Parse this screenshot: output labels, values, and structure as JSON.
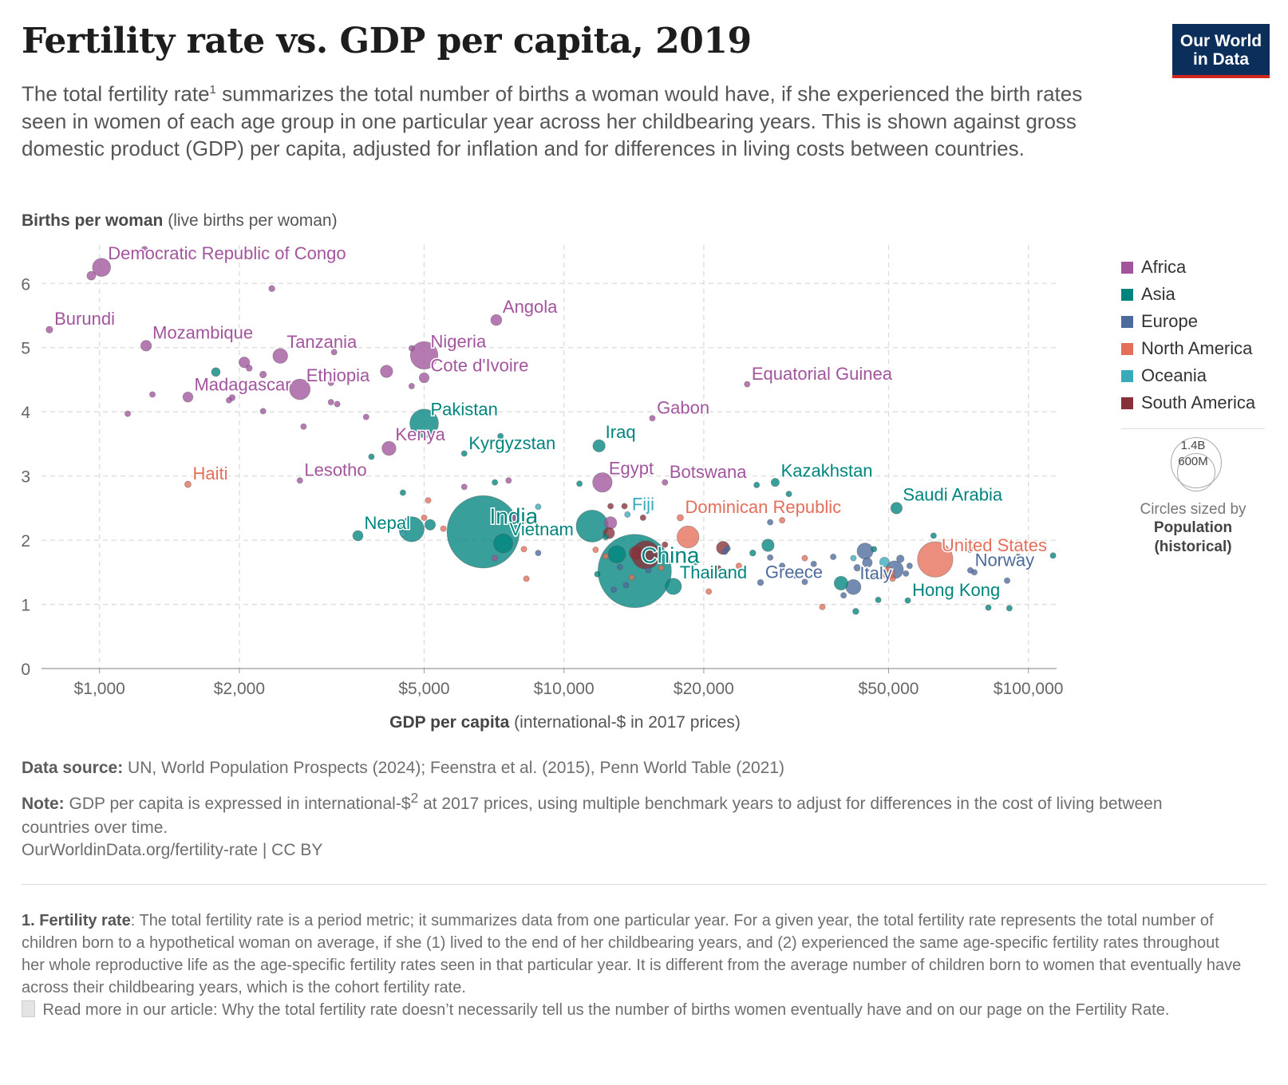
{
  "header": {
    "title": "Fertility rate vs. GDP per capita, 2019",
    "subtitle_part1": "The total fertility rate",
    "subtitle_sup": "1",
    "subtitle_part2": " summarizes the total number of births a woman would have, if she experienced the birth rates seen in women of each age group in one particular year across her childbearing years. This is shown against gross domestic product (GDP) per capita, adjusted for inflation and for differences in living costs between countries.",
    "logo_line1": "Our World",
    "logo_line2": "in Data"
  },
  "axis_text": {
    "ylabel_bold": "Births per woman",
    "ylabel_rest": " (live births per woman)",
    "xlabel_bold": "GDP per capita",
    "xlabel_rest": " (international-$ in 2017 prices)"
  },
  "legend": {
    "items": [
      {
        "label": "Africa",
        "color": "#a2559c"
      },
      {
        "label": "Asia",
        "color": "#00847e"
      },
      {
        "label": "Europe",
        "color": "#4c6a9c"
      },
      {
        "label": "North America",
        "color": "#e56e5a"
      },
      {
        "label": "Oceania",
        "color": "#38aaba"
      },
      {
        "label": "South America",
        "color": "#883039"
      }
    ],
    "size_value_1": "1.4B",
    "size_value_2": "600M",
    "size_caption_1": "Circles sized by",
    "size_caption_2": "Population",
    "size_caption_3": "(historical)"
  },
  "footer": {
    "source_label": "Data source:",
    "source_text": " UN, World Population Prospects (2024); Feenstra et al. (2015), Penn World Table (2021)",
    "note_label": "Note:",
    "note_text_1": " GDP per capita is expressed in international-$",
    "note_sup": "2",
    "note_text_2": " at 2017 prices, using multiple benchmark years to adjust for differences in the cost of living between countries over time.",
    "url": "OurWorldinData.org/fertility-rate | CC BY",
    "fn_label": "1. Fertility rate",
    "fn_text": ": The total fertility rate is a period metric; it summarizes data from one particular year. For a given year, the total fertility rate represents the total number of children born to a hypothetical woman on average, if she (1) lived to the end of her childbearing years, and (2) experienced the same age-specific fertility rates throughout her whole reproductive life as the age-specific fertility rates seen in that particular year. It is different from the average number of children born to women that eventually have across their childbearing years, which is the cohort fertility rate.",
    "fn_more": " Read more in our article: Why the total fertility rate doesn’t necessarily tell us the number of births women eventually have and on our page on the Fertility Rate."
  },
  "chart_data": {
    "type": "scatter",
    "x_scale": "log",
    "xlim": [
      750,
      115000
    ],
    "ylim": [
      0,
      6.6
    ],
    "y_ticks": [
      0,
      1,
      2,
      3,
      4,
      5,
      6
    ],
    "x_ticks": [
      {
        "value": 1000,
        "label": "$1,000"
      },
      {
        "value": 2000,
        "label": "$2,000"
      },
      {
        "value": 5000,
        "label": "$5,000"
      },
      {
        "value": 10000,
        "label": "$10,000"
      },
      {
        "value": 20000,
        "label": "$20,000"
      },
      {
        "value": 50000,
        "label": "$50,000"
      },
      {
        "value": 100000,
        "label": "$100,000"
      }
    ],
    "grid": true,
    "region_colors": {
      "Africa": "#a2559c",
      "Asia": "#00847e",
      "Europe": "#4c6a9c",
      "North America": "#e56e5a",
      "Oceania": "#38aaba",
      "South America": "#883039"
    },
    "labeled_points": [
      {
        "name": "Democratic Republic of Congo",
        "region": "Africa",
        "x": 1010,
        "y": 6.25,
        "pop": 87
      },
      {
        "name": "Burundi",
        "region": "Africa",
        "x": 780,
        "y": 5.28,
        "pop": 12
      },
      {
        "name": "Mozambique",
        "region": "Africa",
        "x": 1260,
        "y": 5.03,
        "pop": 30
      },
      {
        "name": "Tanzania",
        "region": "Africa",
        "x": 2450,
        "y": 4.87,
        "pop": 58
      },
      {
        "name": "Madagascar",
        "region": "Africa",
        "x": 1550,
        "y": 4.23,
        "pop": 27
      },
      {
        "name": "Ethiopia",
        "region": "Africa",
        "x": 2700,
        "y": 4.35,
        "pop": 112
      },
      {
        "name": "Nigeria",
        "region": "Africa",
        "x": 5000,
        "y": 4.88,
        "pop": 200
      },
      {
        "name": "Cote d'Ivoire",
        "region": "Africa",
        "x": 5000,
        "y": 4.53,
        "pop": 26
      },
      {
        "name": "Angola",
        "region": "Africa",
        "x": 7150,
        "y": 5.43,
        "pop": 32
      },
      {
        "name": "Kenya",
        "region": "Africa",
        "x": 4200,
        "y": 3.43,
        "pop": 52
      },
      {
        "name": "Lesotho",
        "region": "Africa",
        "x": 2700,
        "y": 2.93,
        "pop": 2
      },
      {
        "name": "Egypt",
        "region": "Africa",
        "x": 12100,
        "y": 2.9,
        "pop": 100
      },
      {
        "name": "Gabon",
        "region": "Africa",
        "x": 15500,
        "y": 3.9,
        "pop": 2
      },
      {
        "name": "Botswana",
        "region": "Africa",
        "x": 16500,
        "y": 2.9,
        "pop": 2
      },
      {
        "name": "Equatorial Guinea",
        "region": "Africa",
        "x": 24800,
        "y": 4.43,
        "pop": 1
      },
      {
        "name": "Haiti",
        "region": "North America",
        "x": 1550,
        "y": 2.87,
        "pop": 11
      },
      {
        "name": "Pakistan",
        "region": "Asia",
        "x": 5000,
        "y": 3.82,
        "pop": 216
      },
      {
        "name": "Kyrgyzstan",
        "region": "Asia",
        "x": 6100,
        "y": 3.35,
        "pop": 6
      },
      {
        "name": "Iraq",
        "region": "Asia",
        "x": 11900,
        "y": 3.47,
        "pop": 40
      },
      {
        "name": "Nepal",
        "region": "Asia",
        "x": 3600,
        "y": 2.07,
        "pop": 28
      },
      {
        "name": "India",
        "region": "Asia",
        "x": 6700,
        "y": 2.13,
        "pop": 1380
      },
      {
        "name": "Vietnam",
        "region": "Asia",
        "x": 7400,
        "y": 1.95,
        "pop": 96
      },
      {
        "name": "Fiji",
        "region": "Oceania",
        "x": 13700,
        "y": 2.4,
        "pop": 1
      },
      {
        "name": "Dominican Republic",
        "region": "North America",
        "x": 17800,
        "y": 2.35,
        "pop": 11
      },
      {
        "name": "China",
        "region": "Asia",
        "x": 14200,
        "y": 1.52,
        "pop": 1420
      },
      {
        "name": "Thailand",
        "region": "Asia",
        "x": 17200,
        "y": 1.28,
        "pop": 70
      },
      {
        "name": "Kazakhstan",
        "region": "Asia",
        "x": 28500,
        "y": 2.9,
        "pop": 18
      },
      {
        "name": "Greece",
        "region": "Europe",
        "x": 26500,
        "y": 1.34,
        "pop": 10
      },
      {
        "name": "Saudi Arabia",
        "region": "Asia",
        "x": 52000,
        "y": 2.5,
        "pop": 35
      },
      {
        "name": "United States",
        "region": "North America",
        "x": 63000,
        "y": 1.7,
        "pop": 330
      },
      {
        "name": "Italy",
        "region": "Europe",
        "x": 42000,
        "y": 1.27,
        "pop": 60
      },
      {
        "name": "Norway",
        "region": "Europe",
        "x": 75000,
        "y": 1.53,
        "pop": 5
      },
      {
        "name": "Hong Kong",
        "region": "Asia",
        "x": 55000,
        "y": 1.06,
        "pop": 7
      }
    ],
    "other_points": [
      {
        "region": "Africa",
        "x": 1250,
        "y": 6.53,
        "pop": 10
      },
      {
        "region": "Africa",
        "x": 960,
        "y": 6.12,
        "pop": 20
      },
      {
        "region": "Africa",
        "x": 2350,
        "y": 5.92,
        "pop": 10
      },
      {
        "region": "Africa",
        "x": 3200,
        "y": 4.93,
        "pop": 4
      },
      {
        "region": "Africa",
        "x": 4700,
        "y": 4.99,
        "pop": 5
      },
      {
        "region": "Africa",
        "x": 2050,
        "y": 4.77,
        "pop": 30
      },
      {
        "region": "Africa",
        "x": 2100,
        "y": 4.68,
        "pop": 10
      },
      {
        "region": "Africa",
        "x": 2250,
        "y": 4.58,
        "pop": 12
      },
      {
        "region": "Africa",
        "x": 4150,
        "y": 4.63,
        "pop": 40
      },
      {
        "region": "Africa",
        "x": 3150,
        "y": 4.45,
        "pop": 6
      },
      {
        "region": "Africa",
        "x": 4700,
        "y": 4.4,
        "pop": 5
      },
      {
        "region": "Africa",
        "x": 1300,
        "y": 4.27,
        "pop": 8
      },
      {
        "region": "Africa",
        "x": 1900,
        "y": 4.18,
        "pop": 8
      },
      {
        "region": "Africa",
        "x": 1930,
        "y": 4.22,
        "pop": 10
      },
      {
        "region": "Africa",
        "x": 3150,
        "y": 4.15,
        "pop": 8
      },
      {
        "region": "Africa",
        "x": 3250,
        "y": 4.12,
        "pop": 4
      },
      {
        "region": "Africa",
        "x": 1150,
        "y": 3.97,
        "pop": 8
      },
      {
        "region": "Africa",
        "x": 2250,
        "y": 4.01,
        "pop": 8
      },
      {
        "region": "Africa",
        "x": 3750,
        "y": 3.92,
        "pop": 6
      },
      {
        "region": "Africa",
        "x": 2750,
        "y": 3.77,
        "pop": 6
      },
      {
        "region": "Africa",
        "x": 7600,
        "y": 2.93,
        "pop": 8
      },
      {
        "region": "Africa",
        "x": 6100,
        "y": 2.83,
        "pop": 6
      },
      {
        "region": "Africa",
        "x": 7800,
        "y": 2.36,
        "pop": 35
      },
      {
        "region": "Africa",
        "x": 12600,
        "y": 2.27,
        "pop": 40
      },
      {
        "region": "Africa",
        "x": 7100,
        "y": 1.72,
        "pop": 3
      },
      {
        "region": "Asia",
        "x": 1780,
        "y": 4.62,
        "pop": 20
      },
      {
        "region": "Asia",
        "x": 3850,
        "y": 3.3,
        "pop": 6
      },
      {
        "region": "Asia",
        "x": 7300,
        "y": 3.62,
        "pop": 4
      },
      {
        "region": "Asia",
        "x": 7100,
        "y": 2.9,
        "pop": 6
      },
      {
        "region": "Asia",
        "x": 4500,
        "y": 2.74,
        "pop": 4
      },
      {
        "region": "Asia",
        "x": 10800,
        "y": 2.88,
        "pop": 5
      },
      {
        "region": "Asia",
        "x": 30500,
        "y": 2.72,
        "pop": 5
      },
      {
        "region": "Asia",
        "x": 26000,
        "y": 2.86,
        "pop": 6
      },
      {
        "region": "Asia",
        "x": 4700,
        "y": 2.17,
        "pop": 165
      },
      {
        "region": "Asia",
        "x": 5150,
        "y": 2.24,
        "pop": 30
      },
      {
        "region": "Asia",
        "x": 11500,
        "y": 2.22,
        "pop": 270
      },
      {
        "region": "Asia",
        "x": 8200,
        "y": 2.3,
        "pop": 6
      },
      {
        "region": "Asia",
        "x": 13000,
        "y": 1.78,
        "pop": 80
      },
      {
        "region": "Asia",
        "x": 12300,
        "y": 2.05,
        "pop": 8
      },
      {
        "region": "Asia",
        "x": 27500,
        "y": 1.92,
        "pop": 40
      },
      {
        "region": "Asia",
        "x": 25500,
        "y": 1.8,
        "pop": 10
      },
      {
        "region": "Asia",
        "x": 39500,
        "y": 1.33,
        "pop": 50
      },
      {
        "region": "Asia",
        "x": 42500,
        "y": 0.89,
        "pop": 10
      },
      {
        "region": "Asia",
        "x": 47500,
        "y": 1.07,
        "pop": 5
      },
      {
        "region": "Asia",
        "x": 46500,
        "y": 1.86,
        "pop": 3
      },
      {
        "region": "Asia",
        "x": 62500,
        "y": 2.07,
        "pop": 4
      },
      {
        "region": "Asia",
        "x": 75000,
        "y": 1.85,
        "pop": 4
      },
      {
        "region": "Asia",
        "x": 82000,
        "y": 0.95,
        "pop": 4
      },
      {
        "region": "Asia",
        "x": 91000,
        "y": 0.94,
        "pop": 4
      },
      {
        "region": "Asia",
        "x": 113000,
        "y": 1.76,
        "pop": 4
      },
      {
        "region": "Asia",
        "x": 11800,
        "y": 1.47,
        "pop": 5
      },
      {
        "region": "Asia",
        "x": 19200,
        "y": 1.66,
        "pop": 4
      },
      {
        "region": "Europe",
        "x": 8800,
        "y": 1.8,
        "pop": 5
      },
      {
        "region": "Europe",
        "x": 13600,
        "y": 1.3,
        "pop": 4
      },
      {
        "region": "Europe",
        "x": 12800,
        "y": 1.23,
        "pop": 6
      },
      {
        "region": "Europe",
        "x": 13200,
        "y": 1.58,
        "pop": 4
      },
      {
        "region": "Europe",
        "x": 15200,
        "y": 1.53,
        "pop": 4
      },
      {
        "region": "Europe",
        "x": 22200,
        "y": 1.82,
        "pop": 6
      },
      {
        "region": "Europe",
        "x": 22500,
        "y": 1.87,
        "pop": 8
      },
      {
        "region": "Europe",
        "x": 27800,
        "y": 2.28,
        "pop": 4
      },
      {
        "region": "Europe",
        "x": 27800,
        "y": 1.73,
        "pop": 6
      },
      {
        "region": "Europe",
        "x": 29500,
        "y": 1.6,
        "pop": 6
      },
      {
        "region": "Europe",
        "x": 31500,
        "y": 1.45,
        "pop": 8
      },
      {
        "region": "Europe",
        "x": 33000,
        "y": 1.35,
        "pop": 5
      },
      {
        "region": "Europe",
        "x": 34500,
        "y": 1.63,
        "pop": 6
      },
      {
        "region": "Europe",
        "x": 38000,
        "y": 1.74,
        "pop": 6
      },
      {
        "region": "Europe",
        "x": 40000,
        "y": 1.14,
        "pop": 8
      },
      {
        "region": "Europe",
        "x": 42800,
        "y": 1.57,
        "pop": 12
      },
      {
        "region": "Europe",
        "x": 44500,
        "y": 1.83,
        "pop": 68
      },
      {
        "region": "Europe",
        "x": 45000,
        "y": 1.65,
        "pop": 25
      },
      {
        "region": "Europe",
        "x": 46500,
        "y": 1.44,
        "pop": 10
      },
      {
        "region": "Europe",
        "x": 51500,
        "y": 1.54,
        "pop": 83
      },
      {
        "region": "Europe",
        "x": 53000,
        "y": 1.71,
        "pop": 15
      },
      {
        "region": "Europe",
        "x": 55500,
        "y": 1.6,
        "pop": 8
      },
      {
        "region": "Europe",
        "x": 54500,
        "y": 1.48,
        "pop": 8
      },
      {
        "region": "Europe",
        "x": 76500,
        "y": 1.5,
        "pop": 8
      },
      {
        "region": "Europe",
        "x": 90000,
        "y": 1.37,
        "pop": 6
      },
      {
        "region": "Europe",
        "x": 95000,
        "y": 1.74,
        "pop": 4
      },
      {
        "region": "North America",
        "x": 5000,
        "y": 2.35,
        "pop": 5
      },
      {
        "region": "North America",
        "x": 5500,
        "y": 2.18,
        "pop": 5
      },
      {
        "region": "North America",
        "x": 5100,
        "y": 2.62,
        "pop": 3
      },
      {
        "region": "North America",
        "x": 8200,
        "y": 1.86,
        "pop": 4
      },
      {
        "region": "North America",
        "x": 8300,
        "y": 1.4,
        "pop": 4
      },
      {
        "region": "North America",
        "x": 11700,
        "y": 1.85,
        "pop": 4
      },
      {
        "region": "North America",
        "x": 12300,
        "y": 1.75,
        "pop": 4
      },
      {
        "region": "North America",
        "x": 16200,
        "y": 1.57,
        "pop": 4
      },
      {
        "region": "North America",
        "x": 18500,
        "y": 2.05,
        "pop": 127
      },
      {
        "region": "North America",
        "x": 20500,
        "y": 1.2,
        "pop": 4
      },
      {
        "region": "North America",
        "x": 23800,
        "y": 1.6,
        "pop": 4
      },
      {
        "region": "North America",
        "x": 29500,
        "y": 2.31,
        "pop": 3
      },
      {
        "region": "North America",
        "x": 33000,
        "y": 1.72,
        "pop": 5
      },
      {
        "region": "North America",
        "x": 50000,
        "y": 1.49,
        "pop": 38
      },
      {
        "region": "North America",
        "x": 51000,
        "y": 1.4,
        "pop": 4
      },
      {
        "region": "North America",
        "x": 36000,
        "y": 0.96,
        "pop": 4
      },
      {
        "region": "North America",
        "x": 14000,
        "y": 1.42,
        "pop": 5
      },
      {
        "region": "Oceania",
        "x": 4500,
        "y": 2.1,
        "pop": 4
      },
      {
        "region": "Oceania",
        "x": 8800,
        "y": 2.52,
        "pop": 4
      },
      {
        "region": "Oceania",
        "x": 49000,
        "y": 1.66,
        "pop": 25
      },
      {
        "region": "Oceania",
        "x": 42000,
        "y": 1.72,
        "pop": 5
      },
      {
        "region": "South America",
        "x": 12600,
        "y": 2.53,
        "pop": 4
      },
      {
        "region": "South America",
        "x": 13500,
        "y": 2.53,
        "pop": 3
      },
      {
        "region": "South America",
        "x": 15000,
        "y": 1.77,
        "pop": 210
      },
      {
        "region": "South America",
        "x": 14300,
        "y": 1.8,
        "pop": 50
      },
      {
        "region": "South America",
        "x": 12500,
        "y": 2.11,
        "pop": 33
      },
      {
        "region": "South America",
        "x": 14800,
        "y": 2.35,
        "pop": 4
      },
      {
        "region": "South America",
        "x": 22000,
        "y": 1.88,
        "pop": 45
      },
      {
        "region": "South America",
        "x": 21500,
        "y": 1.56,
        "pop": 4
      },
      {
        "region": "South America",
        "x": 16500,
        "y": 1.93,
        "pop": 3
      }
    ]
  }
}
